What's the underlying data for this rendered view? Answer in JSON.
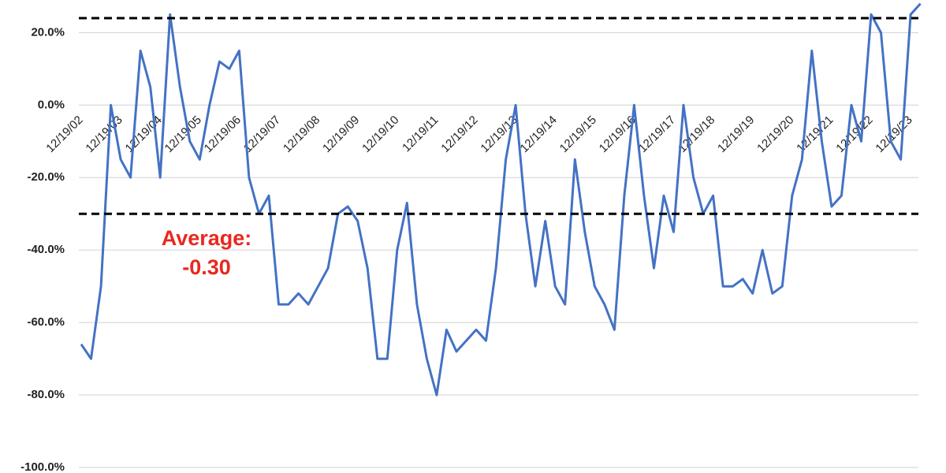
{
  "chart_data": {
    "type": "line",
    "categories": [
      "12/19/02",
      null,
      null,
      null,
      "12/19/03",
      null,
      null,
      null,
      "12/19/04",
      null,
      null,
      null,
      "12/19/05",
      null,
      null,
      null,
      "12/19/06",
      null,
      null,
      null,
      "12/19/07",
      null,
      null,
      null,
      "12/19/08",
      null,
      null,
      null,
      "12/19/09",
      null,
      null,
      null,
      "12/19/10",
      null,
      null,
      null,
      "12/19/11",
      null,
      null,
      null,
      "12/19/12",
      null,
      null,
      null,
      "12/19/13",
      null,
      null,
      null,
      "12/19/14",
      null,
      null,
      null,
      "12/19/15",
      null,
      null,
      null,
      "12/19/16",
      null,
      null,
      null,
      "12/19/17",
      null,
      null,
      null,
      "12/19/18",
      null,
      null,
      null,
      "12/19/19",
      null,
      null,
      null,
      "12/19/20",
      null,
      null,
      null,
      "12/19/21",
      null,
      null,
      null,
      "12/19/22",
      null,
      null,
      null,
      "12/19/23",
      null
    ],
    "series": [
      {
        "color": "#4472c4",
        "values": [
          -66,
          -70,
          -50,
          0,
          -15,
          -20,
          15,
          5,
          -20,
          25,
          5,
          -10,
          -15,
          0,
          12,
          10,
          15,
          -20,
          -30,
          -25,
          -55,
          -55,
          -52,
          -55,
          -50,
          -45,
          -30,
          -28,
          -32,
          -45,
          -70,
          -70,
          -40,
          -27,
          -55,
          -70,
          -80,
          -62,
          -68,
          -65,
          -62,
          -65,
          -45,
          -15,
          0,
          -30,
          -50,
          -32,
          -50,
          -55,
          -15,
          -35,
          -50,
          -55,
          -62,
          -25,
          0,
          -25,
          -45,
          -25,
          -35,
          0,
          -20,
          -30,
          -25,
          -50,
          -50,
          -48,
          -52,
          -40,
          -52,
          -50,
          -25,
          -15,
          15,
          -10,
          -28,
          -25,
          0,
          -10,
          25,
          20,
          -10,
          -15,
          25,
          28
        ]
      }
    ],
    "ylim": [
      -100,
      29
    ],
    "yticks": [
      {
        "value": -100,
        "label": "-100.0%"
      },
      {
        "value": -80,
        "label": "-80.0%"
      },
      {
        "value": -60,
        "label": "-60.0%"
      },
      {
        "value": -40,
        "label": "-40.0%"
      },
      {
        "value": -20,
        "label": "-20.0%"
      },
      {
        "value": 0,
        "label": "0.0%"
      },
      {
        "value": 20,
        "label": "20.0%"
      }
    ],
    "grid": true,
    "hlines": [
      {
        "value": 24
      },
      {
        "value": -30
      }
    ],
    "annotation": [
      "Average:",
      "-0.30"
    ]
  }
}
